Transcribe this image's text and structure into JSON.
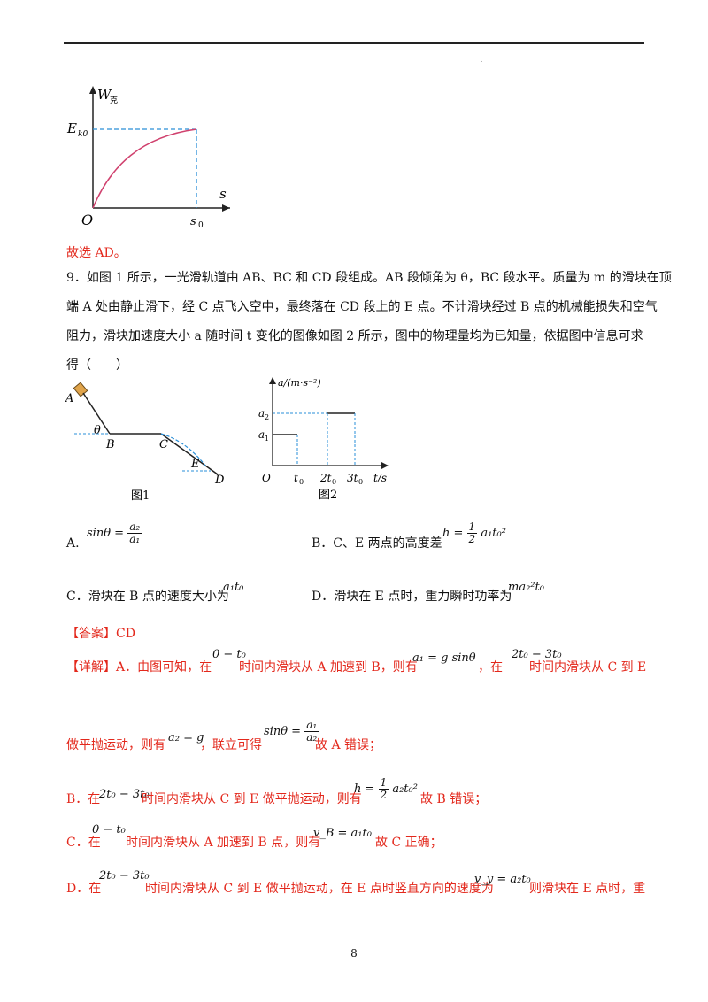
{
  "graph_top": {
    "y_label": "W",
    "y_sub": "克",
    "ek_label": "E",
    "ek_sub": "k0",
    "x_label": "s",
    "origin": "O",
    "s0_label": "s",
    "s0_sub": "0"
  },
  "answer_prev": "故选 AD。",
  "question": {
    "line1": "9．如图 1 所示，一光滑轨道由 AB、BC 和 CD 段组成。AB 段倾角为 θ，BC 段水平。质量为 m 的滑块在顶",
    "line2": "端 A 处由静止滑下，经 C 点飞入空中，最终落在 CD 段上的 E 点。不计滑块经过 B 点的机械能损失和空气",
    "line3": "阻力，滑块加速度大小 a 随时间 t 变化的图像如图 2 所示，图中的物理量均为已知量，依据图中信息可求",
    "line4": "得（　　）"
  },
  "fig1": {
    "A": "A",
    "B": "B",
    "C": "C",
    "D": "D",
    "E": "E",
    "theta": "θ",
    "caption": "图1"
  },
  "fig2": {
    "y_label": "a/(m·s⁻²)",
    "a1": "a",
    "a1_sub": "1",
    "a2": "a",
    "a2_sub": "2",
    "origin": "O",
    "t0": "t",
    "t0_sub": "0",
    "t2": "2t",
    "t2_sub": "0",
    "t3": "3t",
    "t3_sub": "0",
    "x_label": "t/s",
    "caption": "图2"
  },
  "options": {
    "A_label": "A.",
    "A_lhs": "sinθ =",
    "A_num": "a₂",
    "A_den": "a₁",
    "B_label": "B．C、E 两点的高度差",
    "B_lhs": "h =",
    "B_num": "1",
    "B_den": "2",
    "B_rhs": "a₁t₀²",
    "C_label": "C．滑块在 B 点的速度大小为",
    "C_expr": "a₁t₀",
    "D_label": "D．滑块在 E 点时，重力瞬时功率为",
    "D_expr": "ma₂²t₀"
  },
  "answer": "【答案】CD",
  "detail": {
    "l1_a": "【详解】A．由图可知，在",
    "l1_m1": "0 − t₀",
    "l1_b": "时间内滑块从 A 加速到 B，则有",
    "l1_m2": "a₁ = g sinθ",
    "l1_c": "，在",
    "l1_m3": "2t₀ − 3t₀",
    "l1_d": "时间内滑块从 C 到 E",
    "l2_a": "做平抛运动，则有",
    "l2_m1": "a₂ = g",
    "l2_b": "，联立可得",
    "l2_m2_lhs": "sinθ =",
    "l2_m2_num": "a₁",
    "l2_m2_den": "a₂",
    "l2_c": "故 A 错误；",
    "l3_a": "B．在",
    "l3_m1": "2t₀ − 3t₀",
    "l3_b": "时间内滑块从 C 到 E 做平抛运动，则有",
    "l3_m2_lhs": "h =",
    "l3_m2_num": "1",
    "l3_m2_den": "2",
    "l3_m2_rhs": "a₂t₀²",
    "l3_c": "故 B 错误；",
    "l4_a": "C．在",
    "l4_m1": "0 − t₀",
    "l4_b": "时间内滑块从 A 加速到 B 点，则有",
    "l4_m2": "v_B = a₁t₀",
    "l4_c": "故 C 正确；",
    "l5_a": "D．在",
    "l5_m1": "2t₀ − 3t₀",
    "l5_b": "时间内滑块从 C 到 E 做平抛运动，在 E 点时竖直方向的速度为",
    "l5_m2": "v_y = a₂t₀",
    "l5_c": "则滑块在 E 点时，重"
  },
  "page_number": "8"
}
